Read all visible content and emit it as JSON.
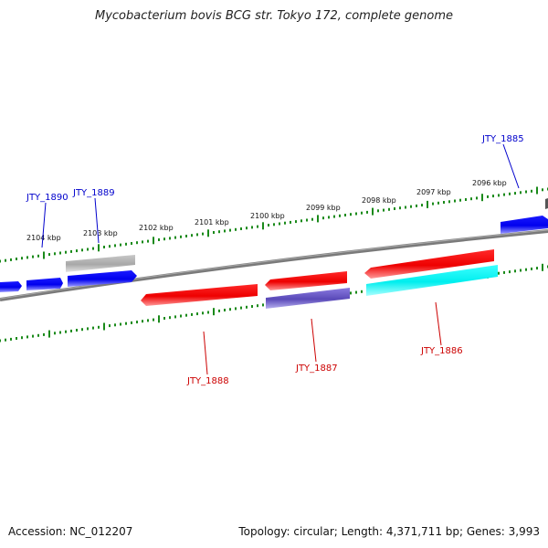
{
  "title": "Mycobacterium bovis BCG str. Tokyo 172, complete genome",
  "footer": {
    "accession": "Accession: NC_012207",
    "topology": "Topology: circular; Length: 4,371,711 bp; Genes: 3,993"
  },
  "kbp_labels": [
    "2104 kbp",
    "2103 kbp",
    "2102 kbp",
    "2101 kbp",
    "2100 kbp",
    "2099 kbp",
    "2098 kbp",
    "2097 kbp",
    "2096 kbp"
  ],
  "genes_plus": [
    {
      "name": "JTY_1890",
      "color": "#0000ff"
    },
    {
      "name": "JTY_1889",
      "color": "#0000ff"
    },
    {
      "name": "JTY_1885",
      "color": "#0000ff"
    }
  ],
  "genes_minus": [
    {
      "name": "JTY_1888",
      "color": "#ff0000"
    },
    {
      "name": "JTY_1887",
      "color": "#ff0000"
    },
    {
      "name": "JTY_1886",
      "color": "#ff0000"
    }
  ],
  "colors": {
    "tick": "#1a8a1a",
    "backbone": "#808080",
    "blue": "#0000ff",
    "red": "#ff0000",
    "cyan": "#00ffff",
    "purple": "#6a5acd",
    "grey": "#b0b0b0"
  }
}
